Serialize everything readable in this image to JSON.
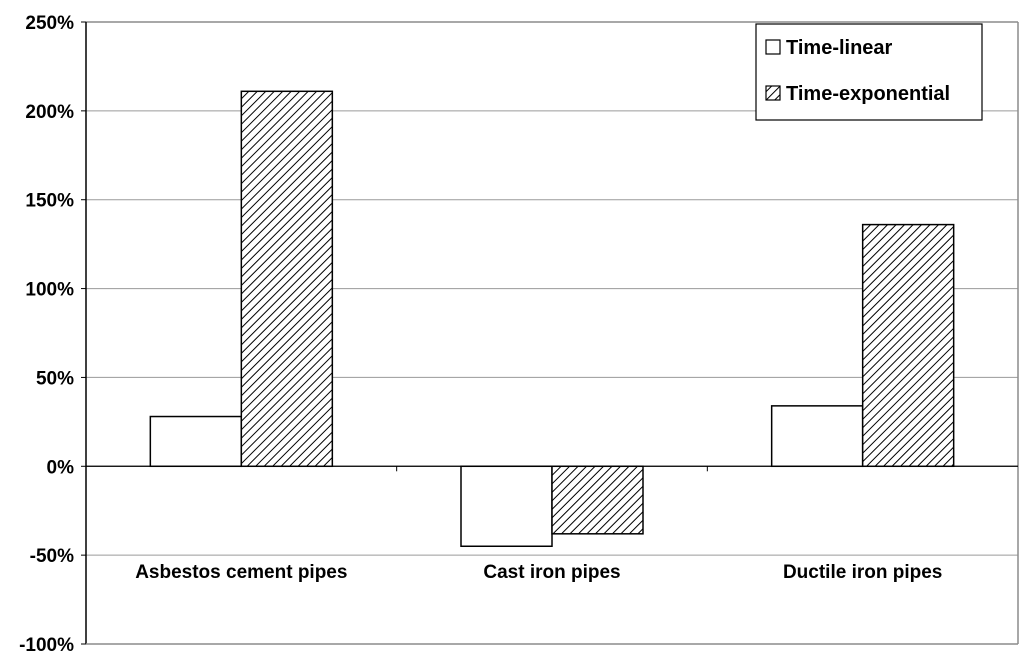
{
  "chart_data": {
    "type": "bar",
    "categories": [
      "Asbestos cement pipes",
      "Cast iron pipes",
      "Ductile iron pipes"
    ],
    "series": [
      {
        "name": "Time-linear",
        "values": [
          28,
          -45,
          34
        ],
        "fill": "#ffffff"
      },
      {
        "name": "Time-exponential",
        "values": [
          211,
          -38,
          136
        ],
        "fill": "hatch"
      }
    ],
    "ylim": [
      -100,
      250
    ],
    "yticks": [
      -100,
      -50,
      0,
      50,
      100,
      150,
      200,
      250
    ],
    "ytick_format": "%",
    "grid": true,
    "legend": "top-right",
    "title": "",
    "xlabel": "",
    "ylabel": ""
  },
  "colors": {
    "bar_stroke": "#000000",
    "grid": "#9a9a9a",
    "plot_border": "#8c8c8c"
  }
}
